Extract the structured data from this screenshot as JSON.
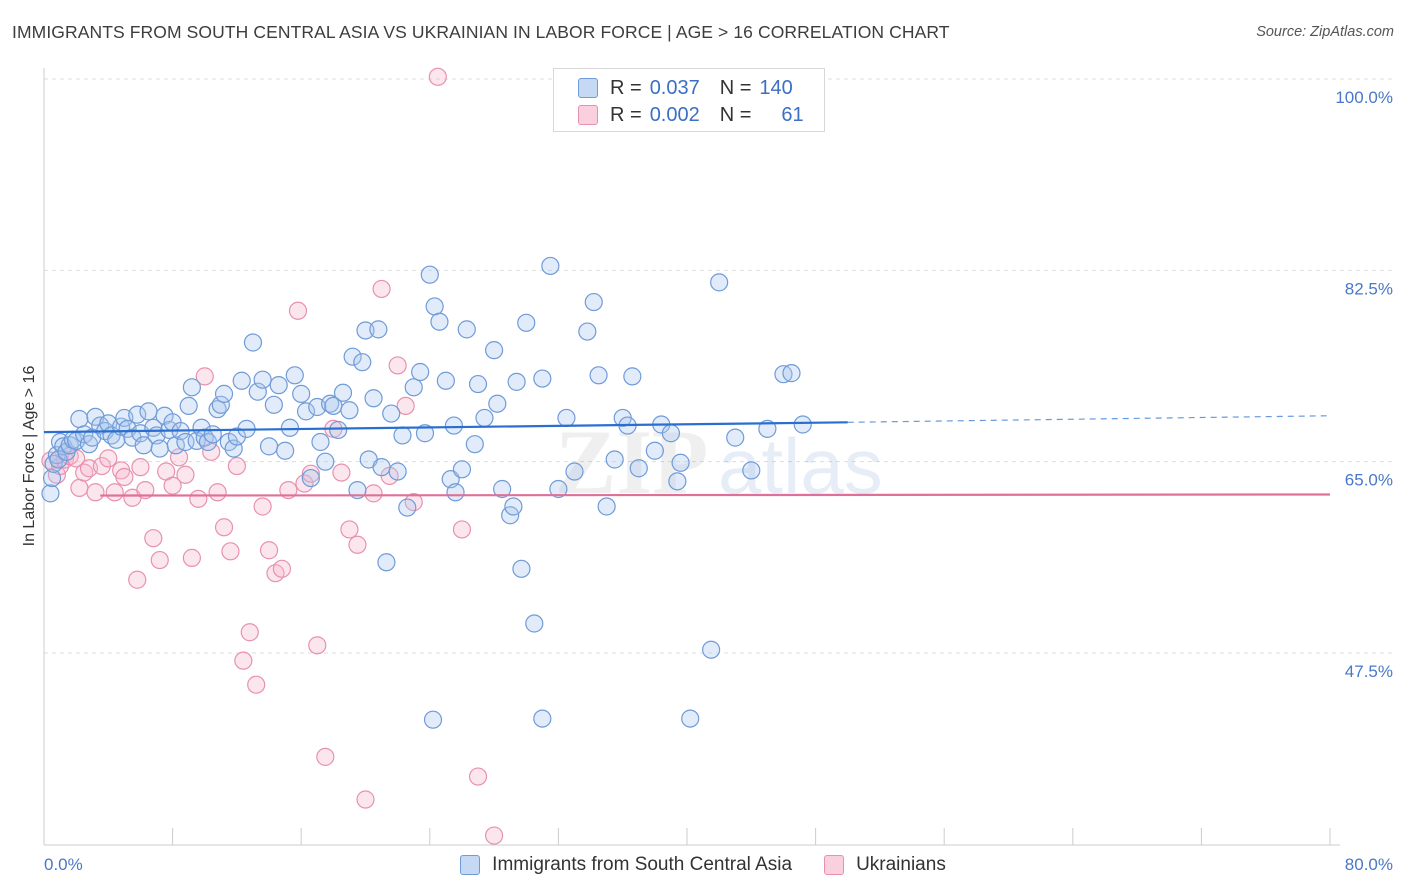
{
  "header": {
    "title": "IMMIGRANTS FROM SOUTH CENTRAL ASIA VS UKRAINIAN IN LABOR FORCE | AGE > 16 CORRELATION CHART",
    "source": "Source: ZipAtlas.com"
  },
  "legend": {
    "r_label": "R =",
    "n_label": "N =",
    "blue": {
      "r": "0.037",
      "n": "140"
    },
    "pink": {
      "r": "0.002",
      "n": "61"
    }
  },
  "watermark": {
    "zip": "ZIP",
    "atlas": "atlas"
  },
  "colors": {
    "blue_fill": "#a9c6ef",
    "blue_stroke": "#6f9bd8",
    "blue_line": "#2a6fd0",
    "pink_fill": "#f5b8cb",
    "pink_stroke": "#e891ae",
    "pink_line": "#e0709a",
    "tick_text": "#4a78c8",
    "grid": "#dddddd"
  },
  "chart_data": {
    "type": "scatter",
    "xlabel": "",
    "ylabel": "In Labor Force | Age > 16",
    "xlim": [
      0,
      80
    ],
    "ylim": [
      32,
      102
    ],
    "x_tick_labels": [
      "0.0%",
      "80.0%"
    ],
    "y_ticks": [
      47.5,
      65.0,
      82.5,
      100.0
    ],
    "y_tick_labels": [
      "47.5%",
      "65.0%",
      "82.5%",
      "100.0%"
    ],
    "grid": "horizontal dashed",
    "legend_position": "top-center",
    "series": [
      {
        "name": "Immigrants from South Central Asia",
        "color": "#6f9bd8",
        "trend": {
          "x": [
            0,
            50
          ],
          "y": [
            67.7,
            68.6
          ],
          "dashed_extension_to_x": 80,
          "dashed_end_y": 69.2
        },
        "points": [
          [
            0.4,
            62.1
          ],
          [
            0.5,
            63.5
          ],
          [
            0.6,
            64.8
          ],
          [
            0.8,
            65.6
          ],
          [
            0.9,
            65.2
          ],
          [
            1.0,
            66.8
          ],
          [
            1.2,
            66.4
          ],
          [
            1.4,
            65.9
          ],
          [
            1.6,
            66.5
          ],
          [
            1.8,
            67.0
          ],
          [
            2.0,
            66.9
          ],
          [
            2.2,
            68.9
          ],
          [
            2.5,
            67.5
          ],
          [
            2.8,
            66.6
          ],
          [
            3.0,
            67.2
          ],
          [
            3.2,
            69.1
          ],
          [
            3.5,
            68.3
          ],
          [
            3.8,
            67.8
          ],
          [
            4.0,
            68.5
          ],
          [
            4.2,
            67.4
          ],
          [
            4.5,
            67.0
          ],
          [
            4.8,
            68.2
          ],
          [
            5.0,
            69.0
          ],
          [
            5.2,
            68.0
          ],
          [
            5.5,
            67.2
          ],
          [
            5.8,
            69.3
          ],
          [
            6.0,
            67.6
          ],
          [
            6.2,
            66.5
          ],
          [
            6.5,
            69.6
          ],
          [
            6.8,
            68.1
          ],
          [
            7.0,
            67.4
          ],
          [
            7.2,
            66.2
          ],
          [
            7.5,
            69.2
          ],
          [
            7.8,
            67.9
          ],
          [
            8.0,
            68.6
          ],
          [
            8.2,
            66.5
          ],
          [
            8.5,
            67.8
          ],
          [
            8.8,
            66.8
          ],
          [
            9.0,
            70.1
          ],
          [
            9.2,
            71.8
          ],
          [
            9.5,
            66.9
          ],
          [
            9.8,
            68.1
          ],
          [
            10.0,
            67.2
          ],
          [
            10.2,
            66.8
          ],
          [
            10.5,
            67.5
          ],
          [
            10.8,
            69.8
          ],
          [
            11.0,
            70.2
          ],
          [
            11.2,
            71.2
          ],
          [
            11.5,
            66.8
          ],
          [
            11.8,
            66.2
          ],
          [
            12.0,
            67.3
          ],
          [
            12.3,
            72.4
          ],
          [
            12.6,
            68.0
          ],
          [
            13.0,
            75.9
          ],
          [
            13.3,
            71.4
          ],
          [
            13.6,
            72.5
          ],
          [
            14.0,
            66.4
          ],
          [
            14.3,
            70.2
          ],
          [
            14.6,
            72.0
          ],
          [
            15.0,
            66.0
          ],
          [
            15.3,
            68.1
          ],
          [
            15.6,
            72.9
          ],
          [
            16.0,
            71.2
          ],
          [
            16.3,
            69.6
          ],
          [
            16.6,
            63.5
          ],
          [
            17.0,
            70.0
          ],
          [
            17.2,
            66.8
          ],
          [
            17.5,
            65.0
          ],
          [
            17.8,
            70.3
          ],
          [
            18.0,
            70.1
          ],
          [
            18.3,
            67.9
          ],
          [
            18.6,
            71.3
          ],
          [
            19.0,
            69.7
          ],
          [
            19.2,
            74.6
          ],
          [
            19.5,
            62.4
          ],
          [
            19.8,
            74.1
          ],
          [
            20.0,
            77.0
          ],
          [
            20.2,
            65.2
          ],
          [
            20.5,
            70.8
          ],
          [
            20.8,
            77.1
          ],
          [
            21.0,
            64.5
          ],
          [
            21.3,
            55.8
          ],
          [
            21.6,
            69.4
          ],
          [
            22.0,
            64.1
          ],
          [
            22.3,
            67.4
          ],
          [
            22.6,
            60.8
          ],
          [
            23.0,
            71.8
          ],
          [
            23.4,
            73.2
          ],
          [
            23.7,
            67.6
          ],
          [
            24.0,
            82.1
          ],
          [
            24.3,
            79.2
          ],
          [
            24.6,
            77.8
          ],
          [
            25.0,
            72.4
          ],
          [
            25.3,
            63.4
          ],
          [
            25.6,
            62.2
          ],
          [
            26.0,
            64.3
          ],
          [
            26.3,
            77.1
          ],
          [
            27.0,
            72.1
          ],
          [
            27.4,
            69.0
          ],
          [
            28.0,
            75.2
          ],
          [
            28.5,
            62.5
          ],
          [
            29.0,
            60.1
          ],
          [
            29.4,
            72.3
          ],
          [
            29.7,
            55.2
          ],
          [
            30.0,
            77.7
          ],
          [
            30.5,
            50.2
          ],
          [
            31.0,
            72.6
          ],
          [
            31.5,
            82.9
          ],
          [
            32.0,
            62.5
          ],
          [
            32.5,
            69.0
          ],
          [
            33.0,
            64.1
          ],
          [
            33.8,
            76.9
          ],
          [
            34.2,
            79.6
          ],
          [
            34.5,
            72.9
          ],
          [
            35.0,
            60.9
          ],
          [
            35.5,
            65.2
          ],
          [
            36.0,
            69.0
          ],
          [
            36.3,
            68.3
          ],
          [
            36.6,
            72.8
          ],
          [
            37.0,
            64.4
          ],
          [
            38.0,
            66.0
          ],
          [
            38.4,
            68.4
          ],
          [
            39.0,
            67.6
          ],
          [
            39.4,
            63.2
          ],
          [
            39.6,
            64.9
          ],
          [
            40.2,
            41.5
          ],
          [
            41.5,
            47.8
          ],
          [
            42.0,
            81.4
          ],
          [
            43.0,
            67.2
          ],
          [
            44.0,
            64.2
          ],
          [
            45.0,
            68.0
          ],
          [
            46.0,
            73.0
          ],
          [
            46.5,
            73.1
          ],
          [
            47.2,
            68.4
          ],
          [
            31.0,
            41.5
          ],
          [
            24.2,
            41.4
          ],
          [
            25.5,
            68.3
          ],
          [
            26.8,
            66.6
          ],
          [
            28.2,
            70.3
          ],
          [
            29.2,
            60.9
          ]
        ]
      },
      {
        "name": "Ukrainians",
        "color": "#e891ae",
        "trend": {
          "x": [
            3.5,
            80
          ],
          "y": [
            61.9,
            62.0
          ]
        },
        "points": [
          [
            0.4,
            65.1
          ],
          [
            0.8,
            63.8
          ],
          [
            1.0,
            64.6
          ],
          [
            1.3,
            65.2
          ],
          [
            1.6,
            65.5
          ],
          [
            2.0,
            65.3
          ],
          [
            2.2,
            62.6
          ],
          [
            2.5,
            64.0
          ],
          [
            2.8,
            64.4
          ],
          [
            3.2,
            62.2
          ],
          [
            3.6,
            64.6
          ],
          [
            4.0,
            65.3
          ],
          [
            4.4,
            62.2
          ],
          [
            4.8,
            64.2
          ],
          [
            5.0,
            63.6
          ],
          [
            5.5,
            61.7
          ],
          [
            5.8,
            54.2
          ],
          [
            6.0,
            64.5
          ],
          [
            6.3,
            62.4
          ],
          [
            6.8,
            58.0
          ],
          [
            7.2,
            56.0
          ],
          [
            7.6,
            64.1
          ],
          [
            8.0,
            62.8
          ],
          [
            8.4,
            65.4
          ],
          [
            8.8,
            63.8
          ],
          [
            9.2,
            56.2
          ],
          [
            9.6,
            61.6
          ],
          [
            10.0,
            72.8
          ],
          [
            10.4,
            65.9
          ],
          [
            10.8,
            62.2
          ],
          [
            11.2,
            59.0
          ],
          [
            11.6,
            56.8
          ],
          [
            12.0,
            64.6
          ],
          [
            12.4,
            46.8
          ],
          [
            12.8,
            49.4
          ],
          [
            13.2,
            44.6
          ],
          [
            13.6,
            60.9
          ],
          [
            14.0,
            56.9
          ],
          [
            14.4,
            54.8
          ],
          [
            14.8,
            55.2
          ],
          [
            15.2,
            62.4
          ],
          [
            15.8,
            78.8
          ],
          [
            16.2,
            63.0
          ],
          [
            16.6,
            63.9
          ],
          [
            17.0,
            48.2
          ],
          [
            17.5,
            38.0
          ],
          [
            18.0,
            68.0
          ],
          [
            18.5,
            64.0
          ],
          [
            19.0,
            58.8
          ],
          [
            19.5,
            57.4
          ],
          [
            20.0,
            34.1
          ],
          [
            20.5,
            62.1
          ],
          [
            21.0,
            80.8
          ],
          [
            21.5,
            63.7
          ],
          [
            22.0,
            73.8
          ],
          [
            22.5,
            70.1
          ],
          [
            23.0,
            61.3
          ],
          [
            24.5,
            100.2
          ],
          [
            26.0,
            58.8
          ],
          [
            27.0,
            36.2
          ],
          [
            28.0,
            30.8
          ]
        ]
      }
    ]
  }
}
